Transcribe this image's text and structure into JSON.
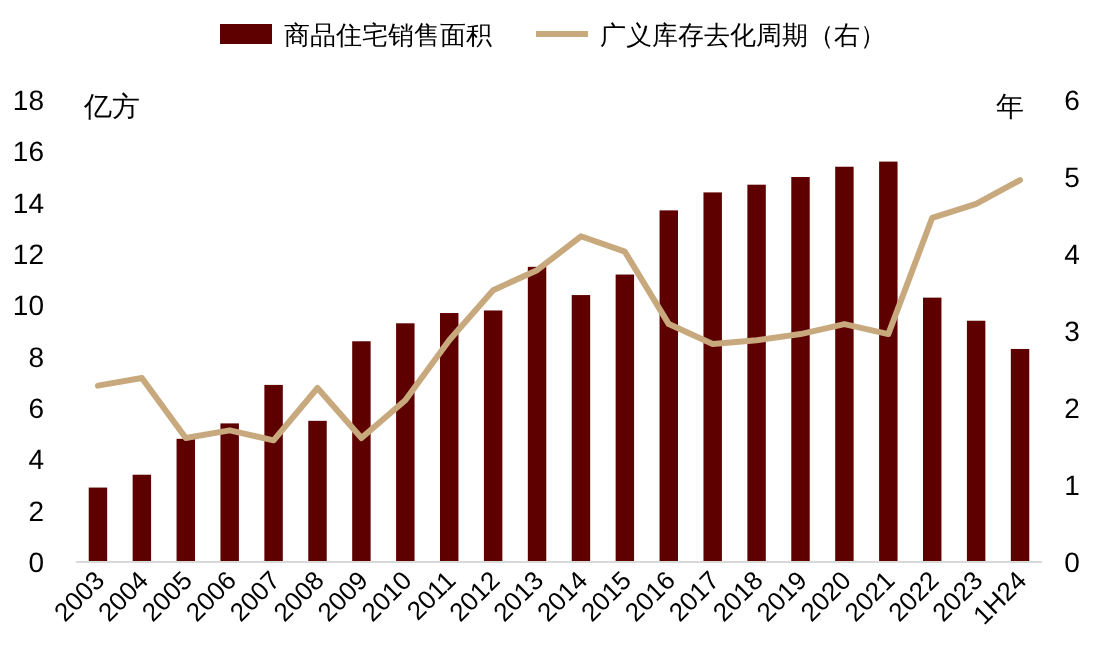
{
  "chart_data": {
    "type": "bar",
    "categories": [
      "2003",
      "2004",
      "2005",
      "2006",
      "2007",
      "2008",
      "2009",
      "2010",
      "2011",
      "2012",
      "2013",
      "2014",
      "2015",
      "2016",
      "2017",
      "2018",
      "2019",
      "2020",
      "2021",
      "2022",
      "2023",
      "1H24"
    ],
    "series": [
      {
        "name": "商品住宅销售面积",
        "color": "#5e0000",
        "values": [
          2.9,
          3.4,
          4.8,
          5.4,
          6.9,
          5.5,
          8.6,
          9.3,
          9.7,
          9.8,
          11.5,
          10.4,
          11.2,
          13.7,
          14.4,
          14.7,
          15.0,
          15.4,
          15.6,
          10.3,
          9.4,
          8.3
        ]
      },
      {
        "name": "广义库存去化周期（右）",
        "type": "line",
        "axis": "y2",
        "color": "#c8a97e",
        "values": [
          2.29,
          2.39,
          1.61,
          1.71,
          1.58,
          2.26,
          1.61,
          2.1,
          2.88,
          3.53,
          3.79,
          4.23,
          4.03,
          3.09,
          2.83,
          2.88,
          2.96,
          3.09,
          2.96,
          4.47,
          4.65,
          4.96
        ]
      }
    ],
    "ylabel": "亿方",
    "y2label": "年",
    "ylim": [
      0,
      18
    ],
    "yticks": [
      0,
      2,
      4,
      6,
      8,
      10,
      12,
      14,
      16,
      18
    ],
    "y2lim": [
      0,
      6
    ],
    "y2ticks": [
      0,
      1,
      2,
      3,
      4,
      5,
      6
    ],
    "legend": "top",
    "grid": false
  }
}
